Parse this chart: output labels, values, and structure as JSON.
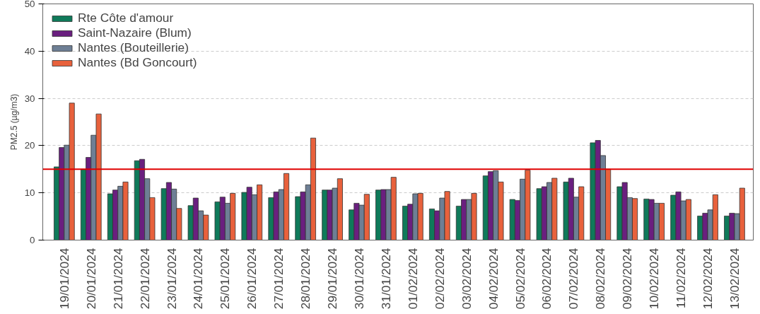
{
  "chart_data": {
    "type": "bar",
    "ylabel": "PM2.5 (µg/m3)",
    "categories": [
      "19/01/2024",
      "20/01/2024",
      "21/01/2024",
      "22/01/2024",
      "23/01/2024",
      "24/01/2024",
      "25/01/2024",
      "26/01/2024",
      "27/01/2024",
      "28/01/2024",
      "29/01/2024",
      "30/01/2024",
      "31/01/2024",
      "01/02/2024",
      "02/02/2024",
      "03/02/2024",
      "04/02/2024",
      "05/02/2024",
      "06/02/2024",
      "07/02/2024",
      "08/02/2024",
      "09/02/2024",
      "10/02/2024",
      "11/02/2024",
      "12/02/2024",
      "13/02/2024"
    ],
    "series": [
      {
        "name": "Rte Côte d'amour",
        "color": "#0f7a5a",
        "values": [
          15.5,
          15.0,
          9.8,
          16.8,
          10.9,
          7.3,
          8.1,
          10.1,
          9.0,
          9.2,
          10.6,
          6.4,
          10.6,
          7.2,
          6.6,
          7.2,
          13.6,
          8.6,
          10.9,
          12.3,
          20.6,
          11.3,
          8.7,
          9.5,
          5.1,
          5.1
        ]
      },
      {
        "name": "Saint-Nazaire (Blum)",
        "color": "#6a1f7f",
        "values": [
          19.6,
          17.5,
          10.6,
          17.1,
          12.2,
          8.9,
          9.1,
          11.2,
          10.2,
          10.2,
          10.6,
          7.8,
          10.7,
          7.6,
          6.2,
          8.6,
          14.5,
          8.4,
          11.3,
          13.1,
          21.1,
          12.2,
          8.6,
          10.2,
          5.7,
          5.7
        ]
      },
      {
        "name": "Nantes (Bouteillerie)",
        "color": "#6e7f95",
        "values": [
          20.1,
          22.2,
          11.4,
          13.0,
          10.8,
          6.2,
          7.8,
          9.6,
          10.7,
          11.7,
          11.0,
          7.4,
          10.7,
          9.8,
          8.9,
          8.6,
          14.7,
          12.9,
          12.2,
          9.1,
          17.9,
          9.0,
          7.8,
          8.3,
          6.4,
          5.6
        ]
      },
      {
        "name": "Nantes (Bd Goncourt)",
        "color": "#e8613c",
        "values": [
          29.0,
          26.7,
          12.3,
          9.0,
          6.7,
          5.3,
          9.9,
          11.7,
          14.1,
          21.6,
          13.0,
          9.7,
          13.3,
          9.9,
          10.3,
          9.9,
          12.3,
          14.8,
          13.1,
          11.3,
          15.0,
          8.8,
          7.8,
          8.6,
          9.6,
          11.0
        ]
      }
    ],
    "ylim": [
      0,
      50
    ],
    "yticks": [
      0,
      10,
      20,
      30,
      40,
      50
    ],
    "grid": "y",
    "legend": "top left",
    "ref_lines": [
      {
        "axis": "y",
        "value": 15,
        "color": "#e00000"
      }
    ]
  }
}
